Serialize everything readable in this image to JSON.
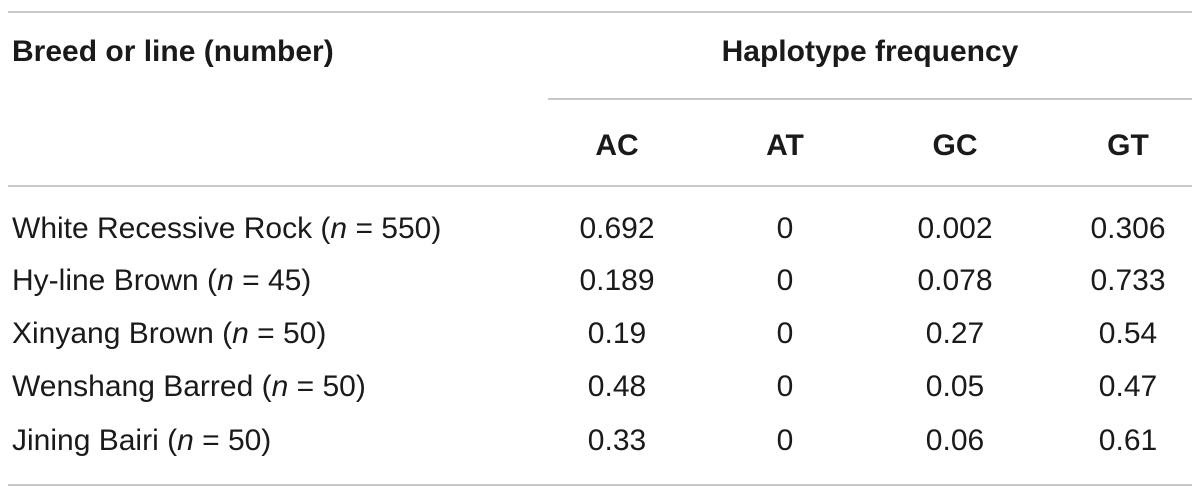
{
  "header": {
    "breed_label": "Breed or line (number)",
    "frequency_label": "Haplotype frequency",
    "columns": [
      "AC",
      "AT",
      "GC",
      "GT"
    ]
  },
  "rows": [
    {
      "name": "White Recessive Rock (",
      "n_symbol": "n",
      "n_suffix": " = 550)",
      "values": [
        "0.692",
        "0",
        "0.002",
        "0.306"
      ]
    },
    {
      "name": "Hy-line Brown (",
      "n_symbol": "n",
      "n_suffix": " = 45)",
      "values": [
        "0.189",
        "0",
        "0.078",
        "0.733"
      ]
    },
    {
      "name": "Xinyang Brown (",
      "n_symbol": "n",
      "n_suffix": " = 50)",
      "values": [
        "0.19",
        "0",
        "0.27",
        "0.54"
      ]
    },
    {
      "name": "Wenshang Barred (",
      "n_symbol": "n",
      "n_suffix": " = 50)",
      "values": [
        "0.48",
        "0",
        "0.05",
        "0.47"
      ]
    },
    {
      "name": "Jining Bairi (",
      "n_symbol": "n",
      "n_suffix": " = 50)",
      "values": [
        "0.33",
        "0",
        "0.06",
        "0.61"
      ]
    }
  ]
}
